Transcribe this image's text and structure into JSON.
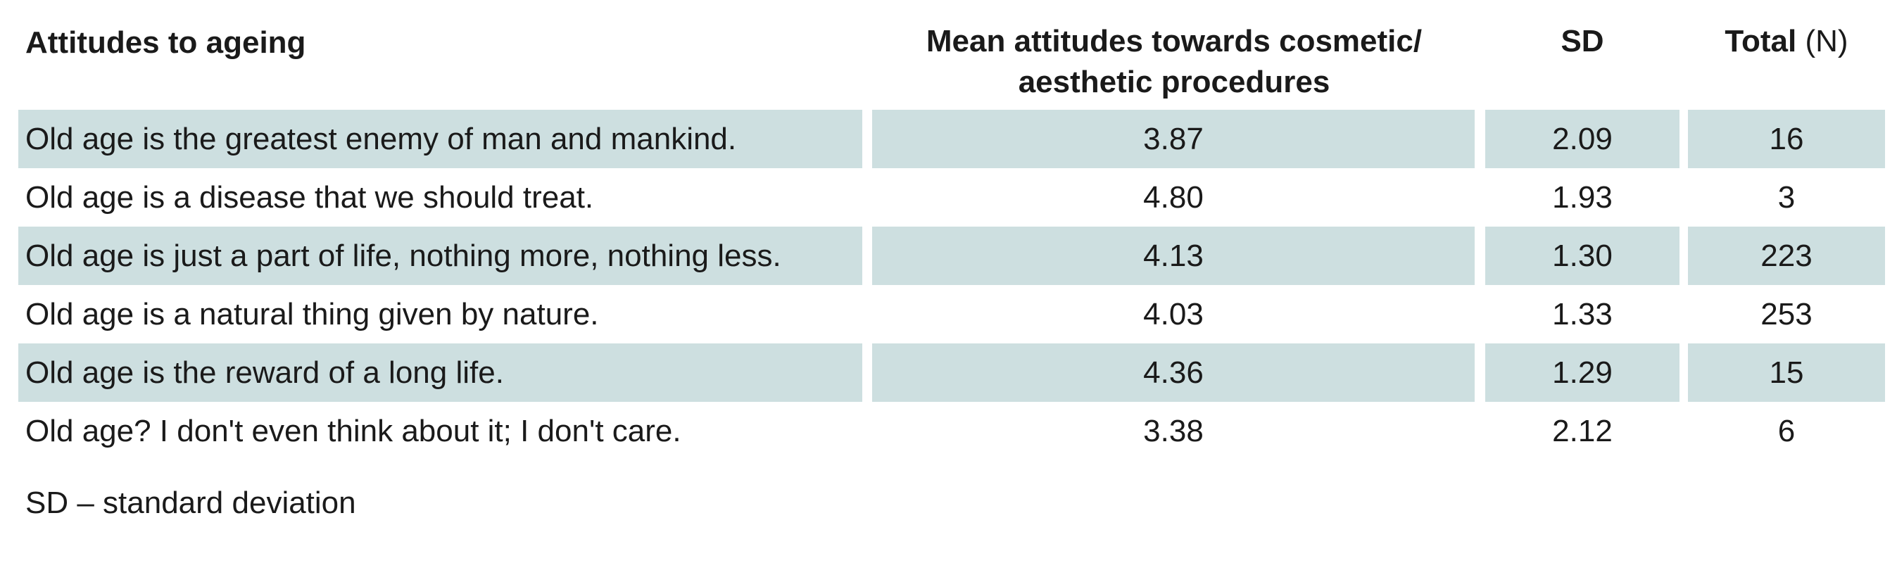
{
  "table": {
    "headers": {
      "attitude": "Attitudes to ageing",
      "mean_line1": "Mean attitudes towards cosmetic/",
      "mean_line2": "aesthetic procedures",
      "sd": "SD",
      "total_label": "Total",
      "total_unit": "(N)"
    },
    "rows": [
      {
        "attitude": "Old age is the greatest enemy of man and mankind.",
        "mean": "3.87",
        "sd": "2.09",
        "total": "16"
      },
      {
        "attitude": "Old age is a disease that we should treat.",
        "mean": "4.80",
        "sd": "1.93",
        "total": "3"
      },
      {
        "attitude": "Old age is just a part of life, nothing more, nothing less.",
        "mean": "4.13",
        "sd": "1.30",
        "total": "223"
      },
      {
        "attitude": "Old age is a natural thing given by nature.",
        "mean": "4.03",
        "sd": "1.33",
        "total": "253"
      },
      {
        "attitude": "Old age is the reward of a long life.",
        "mean": "4.36",
        "sd": "1.29",
        "total": "15"
      },
      {
        "attitude": "Old age? I don't even think about it; I don't care.",
        "mean": "3.38",
        "sd": "2.12",
        "total": "6"
      }
    ],
    "shade_color": "#cddfe0"
  },
  "footnote": "SD – standard deviation"
}
